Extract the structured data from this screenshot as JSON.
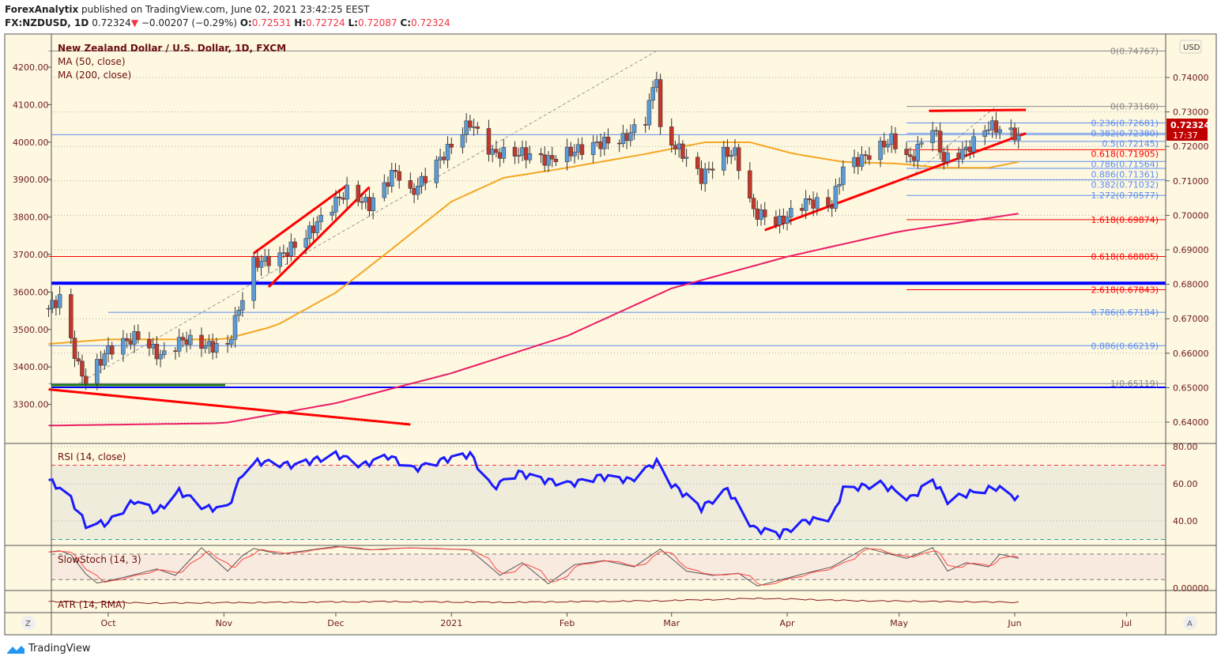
{
  "header": {
    "publisher": "ForexAnalytix",
    "published_text": "published on TradingView.com, June 02, 2021 23:42:25 EEST",
    "symbol": "FX:NZDUSD, 1D",
    "last": "0.72324",
    "change": "−0.00207 (−0.29%)",
    "o_label": "O:",
    "o": "0.72531",
    "h_label": "H:",
    "h": "0.72724",
    "l_label": "L:",
    "l": "0.72087",
    "c_label": "C:",
    "c": "0.72324"
  },
  "legend": {
    "title": "New Zealand Dollar / U.S. Dollar, 1D, FXCM",
    "ma50": "MA (50, close)",
    "ma200": "MA (200, close)",
    "rsi": "RSI (14, close)",
    "stoch": "SlowStoch (14, 3)",
    "atr": "ATR (14, RMA)"
  },
  "price_badge": {
    "value": "0.72324",
    "countdown": "17:37",
    "color": "#c00000"
  },
  "currency_button": "USD",
  "zoom_button": "Z",
  "auto_button": "A",
  "footer_brand": "TradingView",
  "colors": {
    "background": "#fef8e1",
    "up": "#5b9bd5",
    "down": "#c0392b",
    "ma50": "#f5a623",
    "ma200": "#e91e63",
    "rsi": "#1a1aff",
    "trend": "#ff0000",
    "support": "#0000ff"
  },
  "chart_data": {
    "type": "candlestick",
    "title": "New Zealand Dollar / U.S. Dollar, 1D, FXCM",
    "right_axis": {
      "ylim": [
        0.635,
        0.75
      ],
      "ticks": [
        "0.74000",
        "0.73000",
        "0.72000",
        "0.71000",
        "0.70000",
        "0.69000",
        "0.68000",
        "0.67000",
        "0.66000",
        "0.65000",
        "0.64000"
      ]
    },
    "left_axis": {
      "ticks": [
        "4200.00",
        "4100.00",
        "4000.00",
        "3900.00",
        "3800.00",
        "3700.00",
        "3600.00",
        "3500.00",
        "3400.00",
        "3300.00"
      ]
    },
    "x_ticks": [
      {
        "label": "Oct",
        "date": "2020-10-01"
      },
      {
        "label": "Nov",
        "date": "2020-11-01"
      },
      {
        "label": "Dec",
        "date": "2020-12-01"
      },
      {
        "label": "2021",
        "date": "2021-01-01"
      },
      {
        "label": "Feb",
        "date": "2021-02-01"
      },
      {
        "label": "Mar",
        "date": "2021-03-01"
      },
      {
        "label": "Apr",
        "date": "2021-04-01"
      },
      {
        "label": "May",
        "date": "2021-05-01"
      },
      {
        "label": "Jun",
        "date": "2021-06-01"
      },
      {
        "label": "Jul",
        "date": "2021-07-01"
      }
    ],
    "close_path": [
      [
        "2020-09-15",
        0.673
      ],
      [
        "2020-09-18",
        0.676
      ],
      [
        "2020-09-23",
        0.656
      ],
      [
        "2020-09-25",
        0.652
      ],
      [
        "2020-10-01",
        0.661
      ],
      [
        "2020-10-09",
        0.665
      ],
      [
        "2020-10-15",
        0.659
      ],
      [
        "2020-10-21",
        0.664
      ],
      [
        "2020-10-28",
        0.662
      ],
      [
        "2020-11-02",
        0.662
      ],
      [
        "2020-11-05",
        0.673
      ],
      [
        "2020-11-09",
        0.686
      ],
      [
        "2020-11-16",
        0.688
      ],
      [
        "2020-11-23",
        0.694
      ],
      [
        "2020-12-01",
        0.704
      ],
      [
        "2020-12-04",
        0.707
      ],
      [
        "2020-12-10",
        0.703
      ],
      [
        "2020-12-17",
        0.713
      ],
      [
        "2020-12-21",
        0.706
      ],
      [
        "2020-12-31",
        0.719
      ],
      [
        "2021-01-06",
        0.727
      ],
      [
        "2021-01-12",
        0.718
      ],
      [
        "2021-01-20",
        0.718
      ],
      [
        "2021-01-27",
        0.716
      ],
      [
        "2021-02-01",
        0.718
      ],
      [
        "2021-02-10",
        0.721
      ],
      [
        "2021-02-16",
        0.722
      ],
      [
        "2021-02-22",
        0.728
      ],
      [
        "2021-02-25",
        0.741
      ],
      [
        "2021-02-26",
        0.724
      ],
      [
        "2021-03-04",
        0.718
      ],
      [
        "2021-03-09",
        0.711
      ],
      [
        "2021-03-15",
        0.718
      ],
      [
        "2021-03-18",
        0.718
      ],
      [
        "2021-03-23",
        0.701
      ],
      [
        "2021-03-30",
        0.698
      ],
      [
        "2021-04-06",
        0.704
      ],
      [
        "2021-04-13",
        0.703
      ],
      [
        "2021-04-16",
        0.714
      ],
      [
        "2021-04-22",
        0.717
      ],
      [
        "2021-04-29",
        0.722
      ],
      [
        "2021-05-04",
        0.716
      ],
      [
        "2021-05-10",
        0.726
      ],
      [
        "2021-05-13",
        0.716
      ],
      [
        "2021-05-19",
        0.719
      ],
      [
        "2021-05-25",
        0.726
      ],
      [
        "2021-05-28",
        0.725
      ],
      [
        "2021-06-02",
        0.72324
      ]
    ],
    "ma50": [
      [
        "2020-09-15",
        0.6627
      ],
      [
        "2020-10-01",
        0.664
      ],
      [
        "2020-11-01",
        0.664
      ],
      [
        "2020-11-15",
        0.668
      ],
      [
        "2020-12-01",
        0.6776
      ],
      [
        "2020-12-12",
        0.6868
      ],
      [
        "2021-01-01",
        0.704
      ],
      [
        "2021-01-15",
        0.7109
      ],
      [
        "2021-02-01",
        0.7138
      ],
      [
        "2021-02-22",
        0.7178
      ],
      [
        "2021-03-10",
        0.7212
      ],
      [
        "2021-03-22",
        0.7212
      ],
      [
        "2021-04-03",
        0.7178
      ],
      [
        "2021-04-16",
        0.7155
      ],
      [
        "2021-05-01",
        0.715
      ],
      [
        "2021-05-12",
        0.7138
      ],
      [
        "2021-05-25",
        0.7138
      ],
      [
        "2021-06-02",
        0.7155
      ]
    ],
    "ma200": [
      [
        "2020-09-15",
        0.639
      ],
      [
        "2020-11-01",
        0.6397
      ],
      [
        "2020-12-01",
        0.6455
      ],
      [
        "2021-01-01",
        0.6542
      ],
      [
        "2021-02-01",
        0.665
      ],
      [
        "2021-03-01",
        0.6788
      ],
      [
        "2021-04-01",
        0.688
      ],
      [
        "2021-05-01",
        0.6953
      ],
      [
        "2021-06-02",
        0.7005
      ]
    ],
    "fib_levels": [
      {
        "label": "0(0.74767)",
        "price": 0.74767,
        "color": "#888888",
        "from": "2020-09-15"
      },
      {
        "label": "0(0.73160)",
        "price": 0.7316,
        "color": "#888888",
        "from": "2021-05-03"
      },
      {
        "label": "0.236(0.72681)",
        "price": 0.72681,
        "color": "#5b8def",
        "from": "2021-05-03"
      },
      {
        "label": "0.382(0.72380)",
        "price": 0.7238,
        "color": "#5b8def",
        "from": "2021-05-03"
      },
      {
        "label": "0.5(0.72145)",
        "price": 0.72145,
        "color": "#5b8def",
        "from": "2021-05-03"
      },
      {
        "label": "0.618(0.71905)",
        "price": 0.71905,
        "color": "#ff0000",
        "from": "2021-05-03"
      },
      {
        "label": "0.786(0.71564)",
        "price": 0.71564,
        "color": "#5b8def",
        "from": "2021-05-03"
      },
      {
        "label": "0.886(0.71361)",
        "price": 0.71361,
        "color": "#5b8def",
        "from": "2021-05-03"
      },
      {
        "label": "0.382(0.71032)",
        "price": 0.71032,
        "color": "#5b8def",
        "from": "2021-05-03"
      },
      {
        "label": "1.272(0.70577)",
        "price": 0.70577,
        "color": "#5b8def",
        "from": "2021-05-03"
      },
      {
        "label": "1.618(0.69874)",
        "price": 0.69874,
        "color": "#ff0000",
        "from": "2021-05-03"
      },
      {
        "label": "0.618(0.68805)",
        "price": 0.68805,
        "color": "#ff0000",
        "from": "2020-09-15"
      },
      {
        "label": "2.618(0.67843)",
        "price": 0.67843,
        "color": "#ff0000",
        "from": "2021-05-03"
      },
      {
        "label": "0.786(0.67184)",
        "price": 0.67184,
        "color": "#5b8def",
        "from": "2020-10-01"
      },
      {
        "label": "0.886(0.66219)",
        "price": 0.66219,
        "color": "#5b8def",
        "from": "2020-09-15"
      },
      {
        "label": "1(0.65119)",
        "price": 0.65119,
        "color": "#888888",
        "from": "2020-09-15"
      }
    ],
    "horizontal_lines": [
      {
        "price": 0.6803,
        "color": "#0000ff",
        "weight": "thick"
      },
      {
        "price": 0.6501,
        "color": "#0000ff",
        "weight": "normal"
      },
      {
        "price": 0.7234,
        "color": "#5b8def",
        "weight": "thin"
      }
    ],
    "trend_lines": [
      {
        "from": [
          "2020-09-15",
          0.6495
        ],
        "to": [
          "2020-12-21",
          0.6393
        ],
        "color": "#ff0000"
      },
      {
        "from": [
          "2020-11-09",
          0.689
        ],
        "to": [
          "2020-12-04",
          0.7087
        ],
        "color": "#ff0000"
      },
      {
        "from": [
          "2020-11-13",
          0.6792
        ],
        "to": [
          "2020-12-10",
          0.7082
        ],
        "color": "#ff0000"
      },
      {
        "from": [
          "2021-03-26",
          0.6957
        ],
        "to": [
          "2021-06-04",
          0.7238
        ],
        "color": "#ff0000"
      },
      {
        "from": [
          "2021-05-09",
          0.7303
        ],
        "to": [
          "2021-06-04",
          0.7306
        ],
        "color": "#ff0000"
      }
    ],
    "rsi": {
      "ylim": [
        25,
        85
      ],
      "ticks": [
        "80.00",
        "60.00",
        "40.00"
      ],
      "bands": [
        70,
        30
      ],
      "values": [
        [
          "2020-09-15",
          62
        ],
        [
          "2020-09-20",
          55
        ],
        [
          "2020-09-25",
          38
        ],
        [
          "2020-10-01",
          39
        ],
        [
          "2020-10-08",
          51
        ],
        [
          "2020-10-14",
          45
        ],
        [
          "2020-10-20",
          56
        ],
        [
          "2020-10-27",
          47
        ],
        [
          "2020-11-02",
          47
        ],
        [
          "2020-11-06",
          66
        ],
        [
          "2020-11-10",
          72
        ],
        [
          "2020-11-20",
          70
        ],
        [
          "2020-12-01",
          76
        ],
        [
          "2020-12-08",
          70
        ],
        [
          "2020-12-15",
          75
        ],
        [
          "2020-12-22",
          68
        ],
        [
          "2020-12-30",
          73
        ],
        [
          "2021-01-06",
          76
        ],
        [
          "2021-01-12",
          58
        ],
        [
          "2021-01-19",
          66
        ],
        [
          "2021-01-26",
          62
        ],
        [
          "2021-02-02",
          60
        ],
        [
          "2021-02-10",
          64
        ],
        [
          "2021-02-18",
          62
        ],
        [
          "2021-02-25",
          72
        ],
        [
          "2021-03-01",
          60
        ],
        [
          "2021-03-09",
          47
        ],
        [
          "2021-03-16",
          57
        ],
        [
          "2021-03-23",
          36
        ],
        [
          "2021-03-30",
          33
        ],
        [
          "2021-04-06",
          40
        ],
        [
          "2021-04-13",
          42
        ],
        [
          "2021-04-16",
          57
        ],
        [
          "2021-04-26",
          60
        ],
        [
          "2021-05-04",
          52
        ],
        [
          "2021-05-10",
          62
        ],
        [
          "2021-05-14",
          51
        ],
        [
          "2021-05-20",
          55
        ],
        [
          "2021-05-27",
          58
        ],
        [
          "2021-06-02",
          52
        ]
      ]
    },
    "stoch": {
      "ylim": [
        0,
        100
      ],
      "ticks": [
        "0.00000"
      ],
      "bands": [
        80,
        20
      ],
      "k": [
        [
          "2020-09-15",
          85
        ],
        [
          "2020-09-20",
          90
        ],
        [
          "2020-09-27",
          10
        ],
        [
          "2020-10-05",
          25
        ],
        [
          "2020-10-14",
          45
        ],
        [
          "2020-10-19",
          30
        ],
        [
          "2020-10-26",
          95
        ],
        [
          "2020-11-02",
          40
        ],
        [
          "2020-11-08",
          95
        ],
        [
          "2020-11-16",
          80
        ],
        [
          "2020-12-01",
          98
        ],
        [
          "2020-12-10",
          90
        ],
        [
          "2020-12-20",
          95
        ],
        [
          "2021-01-06",
          90
        ],
        [
          "2021-01-14",
          30
        ],
        [
          "2021-01-20",
          60
        ],
        [
          "2021-01-27",
          10
        ],
        [
          "2021-02-03",
          55
        ],
        [
          "2021-02-11",
          65
        ],
        [
          "2021-02-19",
          50
        ],
        [
          "2021-02-26",
          92
        ],
        [
          "2021-03-05",
          40
        ],
        [
          "2021-03-12",
          30
        ],
        [
          "2021-03-19",
          35
        ],
        [
          "2021-03-24",
          5
        ],
        [
          "2021-04-06",
          35
        ],
        [
          "2021-04-13",
          50
        ],
        [
          "2021-04-22",
          95
        ],
        [
          "2021-05-03",
          70
        ],
        [
          "2021-05-10",
          95
        ],
        [
          "2021-05-14",
          40
        ],
        [
          "2021-05-19",
          60
        ],
        [
          "2021-05-25",
          50
        ],
        [
          "2021-05-28",
          80
        ],
        [
          "2021-06-02",
          70
        ]
      ]
    },
    "atr": {
      "values": [
        [
          "2020-09-15",
          0.55
        ],
        [
          "2020-10-15",
          0.45
        ],
        [
          "2020-11-15",
          0.5
        ],
        [
          "2020-12-15",
          0.55
        ],
        [
          "2021-01-15",
          0.5
        ],
        [
          "2021-02-26",
          0.6
        ],
        [
          "2021-03-25",
          0.75
        ],
        [
          "2021-04-20",
          0.6
        ],
        [
          "2021-05-15",
          0.55
        ],
        [
          "2021-06-02",
          0.5
        ]
      ]
    }
  }
}
